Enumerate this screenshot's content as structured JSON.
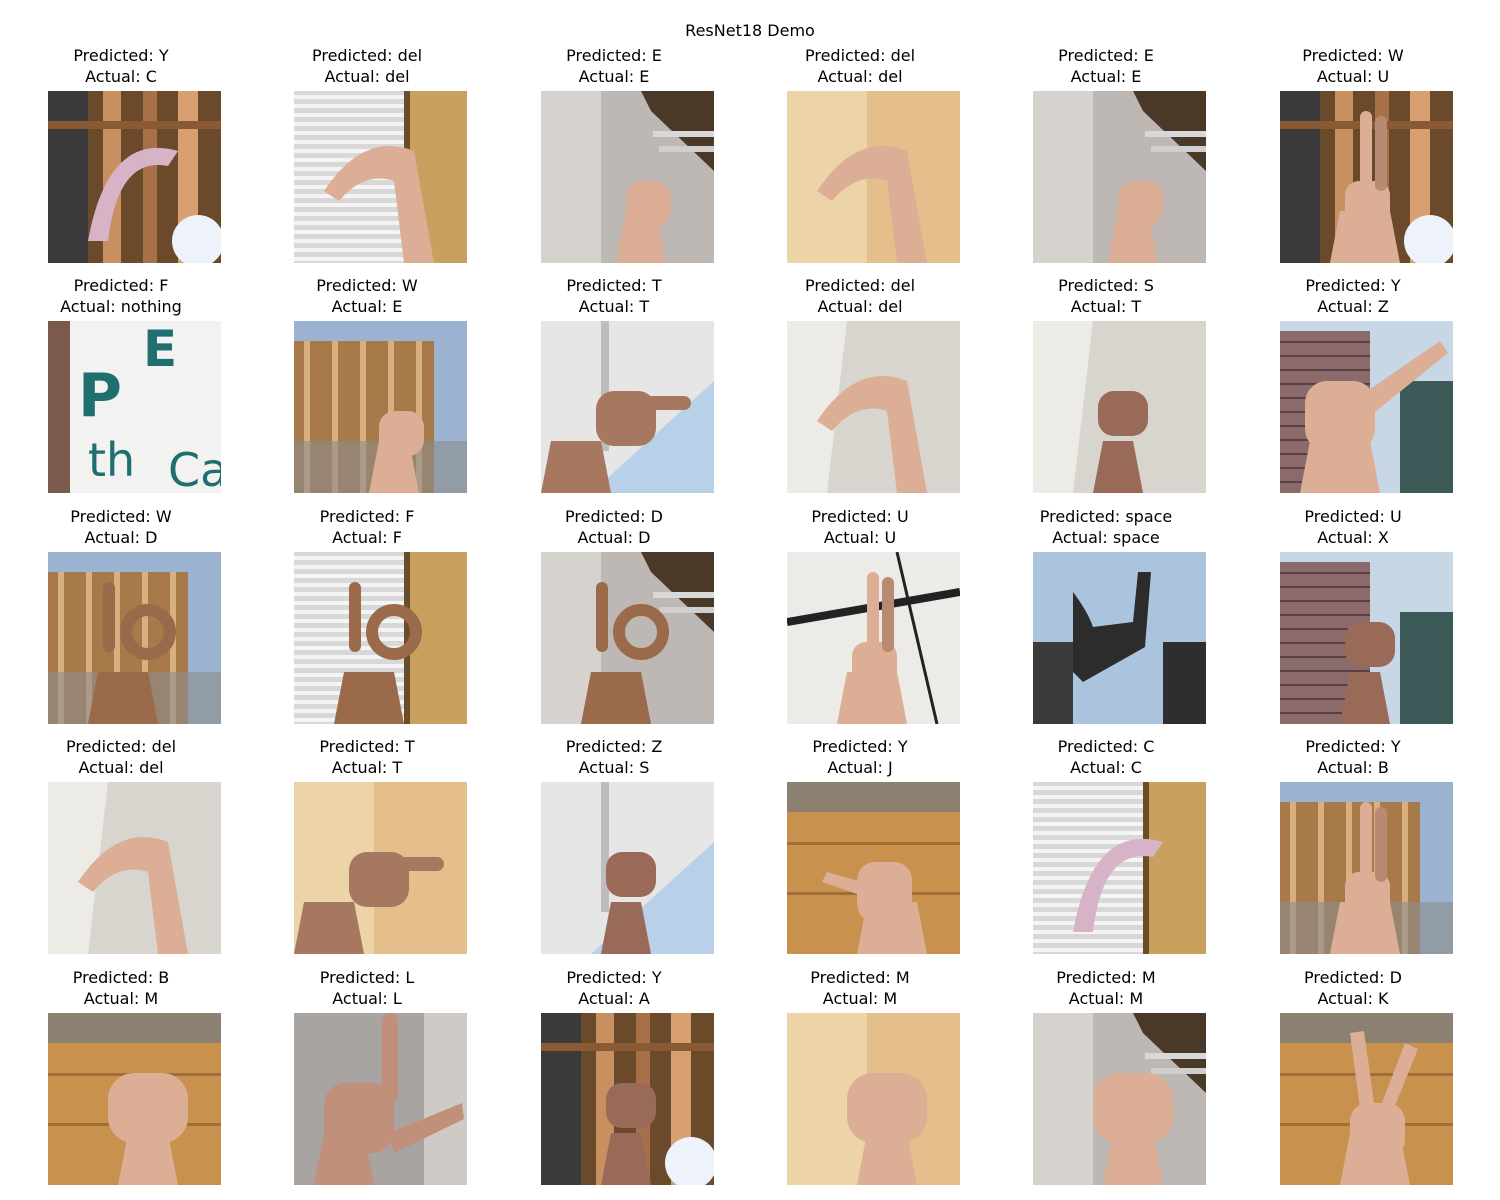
{
  "title": "ResNet18 Demo",
  "labels": {
    "predicted_prefix": "Predicted: ",
    "actual_prefix": "Actual: "
  },
  "grid": [
    [
      {
        "predicted": "Y",
        "actual": "C",
        "scene": "wood-beams",
        "pose": "c-curve"
      },
      {
        "predicted": "del",
        "actual": "del",
        "scene": "window-blinds",
        "pose": "del-hand"
      },
      {
        "predicted": "E",
        "actual": "E",
        "scene": "stair-wall",
        "pose": "fist-e"
      },
      {
        "predicted": "del",
        "actual": "del",
        "scene": "warm-wall",
        "pose": "del-hand"
      },
      {
        "predicted": "E",
        "actual": "E",
        "scene": "stair-wall",
        "pose": "fist-e"
      },
      {
        "predicted": "W",
        "actual": "U",
        "scene": "wood-beams",
        "pose": "two-fingers"
      }
    ],
    [
      {
        "predicted": "F",
        "actual": "nothing",
        "scene": "sign-letters",
        "pose": "none"
      },
      {
        "predicted": "W",
        "actual": "E",
        "scene": "construction",
        "pose": "fist-e"
      },
      {
        "predicted": "T",
        "actual": "T",
        "scene": "sky-overhang",
        "pose": "fist-thumb"
      },
      {
        "predicted": "del",
        "actual": "del",
        "scene": "corner-wall",
        "pose": "del-hand"
      },
      {
        "predicted": "S",
        "actual": "T",
        "scene": "corner-wall",
        "pose": "small-fist"
      },
      {
        "predicted": "Y",
        "actual": "Z",
        "scene": "building-sky",
        "pose": "point-index"
      }
    ],
    [
      {
        "predicted": "W",
        "actual": "D",
        "scene": "construction",
        "pose": "o-ring"
      },
      {
        "predicted": "F",
        "actual": "F",
        "scene": "window-blinds",
        "pose": "o-ring"
      },
      {
        "predicted": "D",
        "actual": "D",
        "scene": "stair-wall",
        "pose": "o-ring"
      },
      {
        "predicted": "U",
        "actual": "U",
        "scene": "white-ceiling",
        "pose": "two-fingers"
      },
      {
        "predicted": "space",
        "actual": "space",
        "scene": "sky-dark",
        "pose": "space-hand"
      },
      {
        "predicted": "U",
        "actual": "X",
        "scene": "building-sky",
        "pose": "small-fist"
      }
    ],
    [
      {
        "predicted": "del",
        "actual": "del",
        "scene": "corner-wall",
        "pose": "del-hand"
      },
      {
        "predicted": "T",
        "actual": "T",
        "scene": "warm-wall",
        "pose": "fist-thumb"
      },
      {
        "predicted": "Z",
        "actual": "S",
        "scene": "sky-overhang",
        "pose": "small-fist"
      },
      {
        "predicted": "Y",
        "actual": "J",
        "scene": "wood-floor",
        "pose": "y-hand"
      },
      {
        "predicted": "C",
        "actual": "C",
        "scene": "window-blinds",
        "pose": "c-curve"
      },
      {
        "predicted": "Y",
        "actual": "B",
        "scene": "construction",
        "pose": "two-fingers"
      }
    ],
    [
      {
        "predicted": "B",
        "actual": "M",
        "scene": "wood-floor",
        "pose": "fist-m"
      },
      {
        "predicted": "L",
        "actual": "L",
        "scene": "grey-wall",
        "pose": "l-hand"
      },
      {
        "predicted": "Y",
        "actual": "A",
        "scene": "wood-beams",
        "pose": "small-fist"
      },
      {
        "predicted": "M",
        "actual": "M",
        "scene": "warm-wall",
        "pose": "fist-m"
      },
      {
        "predicted": "M",
        "actual": "M",
        "scene": "stair-wall",
        "pose": "fist-m"
      },
      {
        "predicted": "D",
        "actual": "K",
        "scene": "wood-floor",
        "pose": "v-hand"
      }
    ]
  ]
}
